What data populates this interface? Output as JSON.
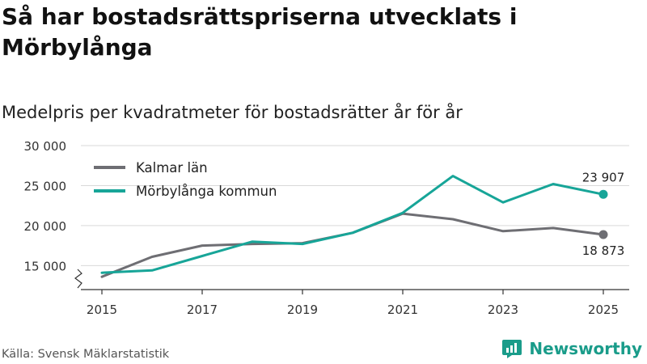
{
  "title": "Så har bostadsrättspriserna utvecklats i Mörbylånga",
  "subtitle": "Medelpris per kvadratmeter för bostadsrätter år för år",
  "source": "Källa: Svensk Mäklarstatistik",
  "brand": "Newsworthy",
  "colors": {
    "kalmar": "#6e6e73",
    "morbylanga": "#17a598",
    "grid": "#d9d9d9",
    "axis": "#333333",
    "brand": "#1a9c8a"
  },
  "chart_data": {
    "type": "line",
    "title": "Så har bostadsrättspriserna utvecklats i Mörbylånga",
    "subtitle": "Medelpris per kvadratmeter för bostadsrätter år för år",
    "x": [
      2015,
      2016,
      2017,
      2018,
      2019,
      2020,
      2021,
      2022,
      2023,
      2024,
      2025
    ],
    "x_ticks": [
      2015,
      2017,
      2019,
      2021,
      2023,
      2025
    ],
    "x_tick_labels": [
      "2015",
      "2017",
      "2019",
      "2021",
      "2023",
      "2025"
    ],
    "ylim": [
      12000,
      30000
    ],
    "y_ticks": [
      15000,
      20000,
      25000,
      30000
    ],
    "y_tick_labels": [
      "15 000",
      "20 000",
      "25 000",
      "30 000"
    ],
    "axis_break": true,
    "grid": true,
    "legend_position": "top-left",
    "series": [
      {
        "name": "Kalmar län",
        "color": "#6e6e73",
        "values": [
          13600,
          16100,
          17500,
          17700,
          17800,
          19100,
          21500,
          20800,
          19300,
          19700,
          18873
        ],
        "end_label": "18 873",
        "end_label_position": "below"
      },
      {
        "name": "Mörbylånga kommun",
        "color": "#17a598",
        "values": [
          14100,
          14400,
          16200,
          18000,
          17700,
          19100,
          21600,
          26200,
          22900,
          25200,
          23907
        ],
        "end_label": "23 907",
        "end_label_position": "above"
      }
    ]
  }
}
